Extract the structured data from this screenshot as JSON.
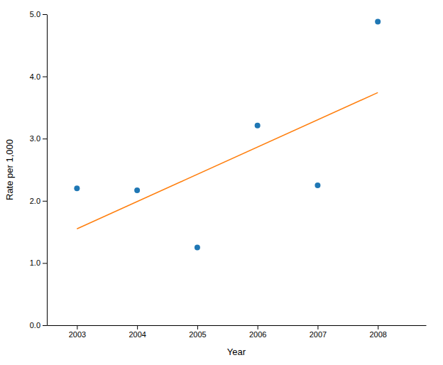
{
  "chart_data": {
    "type": "scatter",
    "xlabel": "Year",
    "ylabel": "Rate per 1,000",
    "series": [
      {
        "type": "scatter",
        "x": [
          2003,
          2004,
          2005,
          2006,
          2007,
          2008
        ],
        "values": [
          2.2,
          2.17,
          1.25,
          3.21,
          2.25,
          4.88
        ]
      },
      {
        "type": "line",
        "x": [
          2003,
          2008
        ],
        "values": [
          1.55,
          3.74
        ]
      }
    ],
    "xlim": [
      2002.5,
      2008.8
    ],
    "ylim": [
      0.0,
      5.0
    ],
    "xticks": [
      2003,
      2004,
      2005,
      2006,
      2007,
      2008
    ],
    "yticks": [
      {
        "value": 0.0,
        "label": "0.0"
      },
      {
        "value": 1.0,
        "label": "1.0"
      },
      {
        "value": 2.0,
        "label": "2.0"
      },
      {
        "value": 3.0,
        "label": "3.0"
      },
      {
        "value": 4.0,
        "label": "4.0"
      },
      {
        "value": 5.0,
        "label": "5.0"
      }
    ]
  }
}
